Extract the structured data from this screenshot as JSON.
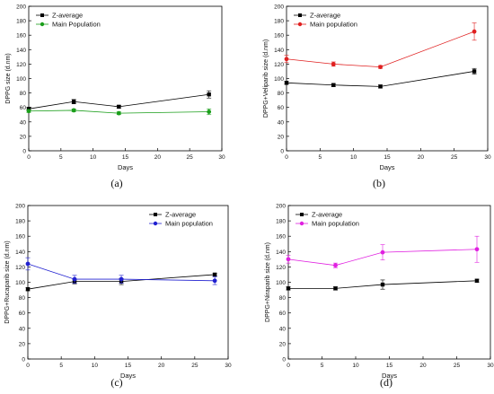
{
  "chart_data": [
    {
      "type": "line",
      "panel_label": "(a)",
      "xlabel": "Days",
      "ylabel": "DPPG size (d.nm)",
      "xlim": [
        0,
        30
      ],
      "ylim": [
        0,
        200
      ],
      "xticks": [
        "0",
        "5",
        "10",
        "15",
        "20",
        "25",
        "30"
      ],
      "yticks": [
        "0",
        "20",
        "40",
        "60",
        "80",
        "100",
        "120",
        "140",
        "160",
        "180",
        "200"
      ],
      "legend_position": "top-left",
      "series": [
        {
          "name": "Z-average",
          "color": "#000000",
          "marker": "square",
          "x": [
            0,
            7,
            14,
            28
          ],
          "y": [
            58,
            68,
            61,
            78
          ],
          "err": [
            2,
            3,
            2,
            5
          ]
        },
        {
          "name": "Main Population",
          "color": "#1a9e1a",
          "marker": "circle",
          "x": [
            0,
            7,
            14,
            28
          ],
          "y": [
            55,
            56,
            52,
            54
          ],
          "err": [
            2,
            2,
            2,
            4
          ]
        }
      ]
    },
    {
      "type": "line",
      "panel_label": "(b)",
      "xlabel": "Days",
      "ylabel": "DPPG+Veliparib size (d.nm)",
      "xlim": [
        0,
        30
      ],
      "ylim": [
        0,
        200
      ],
      "xticks": [
        "0",
        "5",
        "10",
        "15",
        "20",
        "25",
        "30"
      ],
      "yticks": [
        "0",
        "20",
        "40",
        "60",
        "80",
        "100",
        "120",
        "140",
        "160",
        "180",
        "200"
      ],
      "legend_position": "top-left",
      "series": [
        {
          "name": "Z-average",
          "color": "#000000",
          "marker": "square",
          "x": [
            0,
            7,
            14,
            28
          ],
          "y": [
            94,
            91,
            89,
            110
          ],
          "err": [
            2,
            2,
            2,
            4
          ]
        },
        {
          "name": "Main population",
          "color": "#e02020",
          "marker": "circle",
          "x": [
            0,
            7,
            14,
            28
          ],
          "y": [
            127,
            120,
            116,
            165
          ],
          "err": [
            5,
            3,
            2,
            12
          ]
        }
      ]
    },
    {
      "type": "line",
      "panel_label": "(c)",
      "xlabel": "Days",
      "ylabel": "DPPG+Rucaparib size (d.nm)",
      "xlim": [
        0,
        30
      ],
      "ylim": [
        0,
        200
      ],
      "xticks": [
        "0",
        "5",
        "10",
        "15",
        "20",
        "25",
        "30"
      ],
      "yticks": [
        "0",
        "20",
        "40",
        "60",
        "80",
        "100",
        "120",
        "140",
        "160",
        "180",
        "200"
      ],
      "legend_position": "top-right",
      "series": [
        {
          "name": "Z-average",
          "color": "#000000",
          "marker": "square",
          "x": [
            0,
            7,
            14,
            28
          ],
          "y": [
            91,
            101,
            101,
            110
          ],
          "err": [
            2,
            3,
            4,
            2
          ]
        },
        {
          "name": "Main population",
          "color": "#2020d0",
          "marker": "circle",
          "x": [
            0,
            7,
            14,
            28
          ],
          "y": [
            124,
            104,
            104,
            102
          ],
          "err": [
            8,
            5,
            5,
            5
          ]
        }
      ]
    },
    {
      "type": "line",
      "panel_label": "(d)",
      "xlabel": "Days",
      "ylabel": "DPPG+Niraparib size (d.nm)",
      "xlim": [
        0,
        30
      ],
      "ylim": [
        0,
        200
      ],
      "xticks": [
        "0",
        "5",
        "10",
        "15",
        "20",
        "25",
        "30"
      ],
      "yticks": [
        "0",
        "20",
        "40",
        "60",
        "80",
        "100",
        "120",
        "140",
        "160",
        "180",
        "200"
      ],
      "legend_position": "top-left",
      "series": [
        {
          "name": "Z-average",
          "color": "#000000",
          "marker": "square",
          "x": [
            0,
            7,
            14,
            28
          ],
          "y": [
            92,
            92,
            97,
            102
          ],
          "err": [
            2,
            2,
            6,
            2
          ]
        },
        {
          "name": "Main population",
          "color": "#e020e0",
          "marker": "circle",
          "x": [
            0,
            7,
            14,
            28
          ],
          "y": [
            130,
            122,
            139,
            143
          ],
          "err": [
            5,
            3,
            10,
            17
          ]
        }
      ]
    }
  ]
}
